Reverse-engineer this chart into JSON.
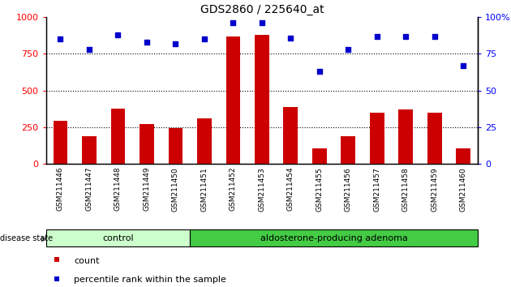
{
  "title": "GDS2860 / 225640_at",
  "categories": [
    "GSM211446",
    "GSM211447",
    "GSM211448",
    "GSM211449",
    "GSM211450",
    "GSM211451",
    "GSM211452",
    "GSM211453",
    "GSM211454",
    "GSM211455",
    "GSM211456",
    "GSM211457",
    "GSM211458",
    "GSM211459",
    "GSM211460"
  ],
  "bar_values": [
    290,
    185,
    375,
    270,
    245,
    310,
    870,
    880,
    385,
    105,
    185,
    345,
    370,
    345,
    105
  ],
  "scatter_values": [
    85,
    78,
    88,
    83,
    82,
    85,
    96,
    96,
    86,
    63,
    78,
    87,
    87,
    87,
    67
  ],
  "bar_color": "#cc0000",
  "scatter_color": "#0000cc",
  "ylim_left": [
    0,
    1000
  ],
  "ylim_right": [
    0,
    100
  ],
  "yticks_left": [
    0,
    250,
    500,
    750,
    1000
  ],
  "yticks_right": [
    0,
    25,
    50,
    75,
    100
  ],
  "ytick_labels_right": [
    "0",
    "25",
    "50",
    "75",
    "100%"
  ],
  "grid_values": [
    250,
    500,
    750
  ],
  "control_count": 5,
  "adenoma_count": 10,
  "group_labels": [
    "control",
    "aldosterone-producing adenoma"
  ],
  "control_color": "#ccffcc",
  "adenoma_color": "#44cc44",
  "disease_state_label": "disease state",
  "legend_bar_label": "count",
  "legend_scatter_label": "percentile rank within the sample",
  "bg_color": "#ffffff",
  "xtick_bg_color": "#cccccc",
  "bar_width": 0.5,
  "title_fontsize": 10,
  "axis_fontsize": 8,
  "legend_fontsize": 8
}
